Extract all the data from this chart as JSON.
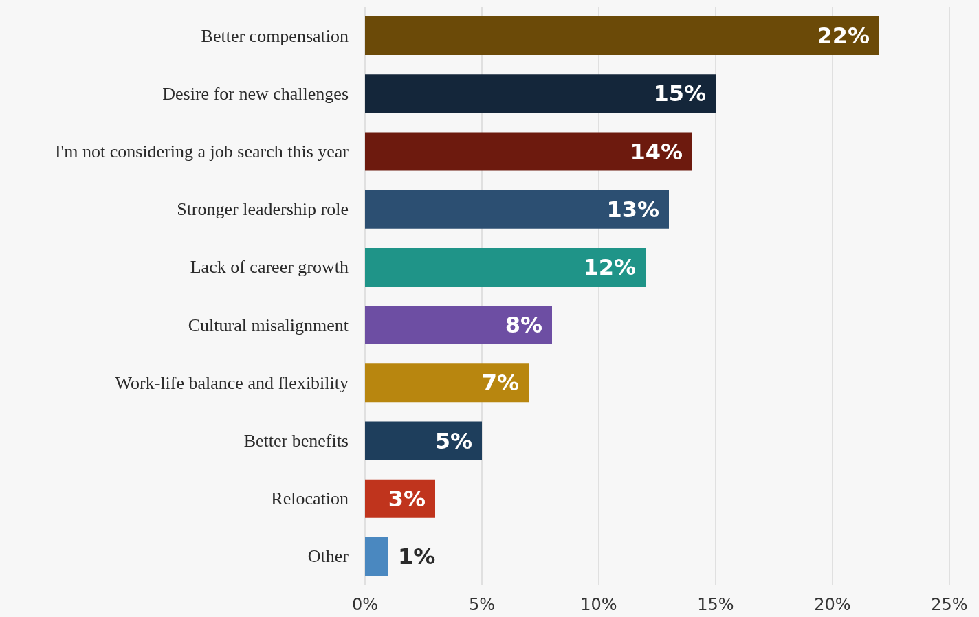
{
  "chart_data": {
    "type": "bar",
    "orientation": "horizontal",
    "categories": [
      "Better compensation",
      "Desire for new challenges",
      "I'm not considering a job search this year",
      "Stronger leadership role",
      "Lack of career growth",
      "Cultural misalignment",
      "Work-life balance and flexibility",
      "Better benefits",
      "Relocation",
      "Other"
    ],
    "values": [
      22,
      15,
      14,
      13,
      12,
      8,
      7,
      5,
      3,
      1
    ],
    "colors": [
      "#6b4a08",
      "#14263a",
      "#6d1a0e",
      "#2c4f72",
      "#1f9488",
      "#6d4ea3",
      "#b8860f",
      "#1e3e5c",
      "#c0341d",
      "#4a88c0"
    ],
    "xlim": [
      0,
      25
    ],
    "xticks": [
      {
        "value": 0,
        "label": "0%"
      },
      {
        "value": 5,
        "label": "5%"
      },
      {
        "value": 10,
        "label": "10%"
      },
      {
        "value": 15,
        "label": "15%"
      },
      {
        "value": 20,
        "label": "20%"
      },
      {
        "value": 25,
        "label": "25%"
      }
    ],
    "value_labels": [
      "22%",
      "15%",
      "14%",
      "13%",
      "12%",
      "8%",
      "7%",
      "5%",
      "3%",
      "1%"
    ],
    "grid": "x"
  }
}
